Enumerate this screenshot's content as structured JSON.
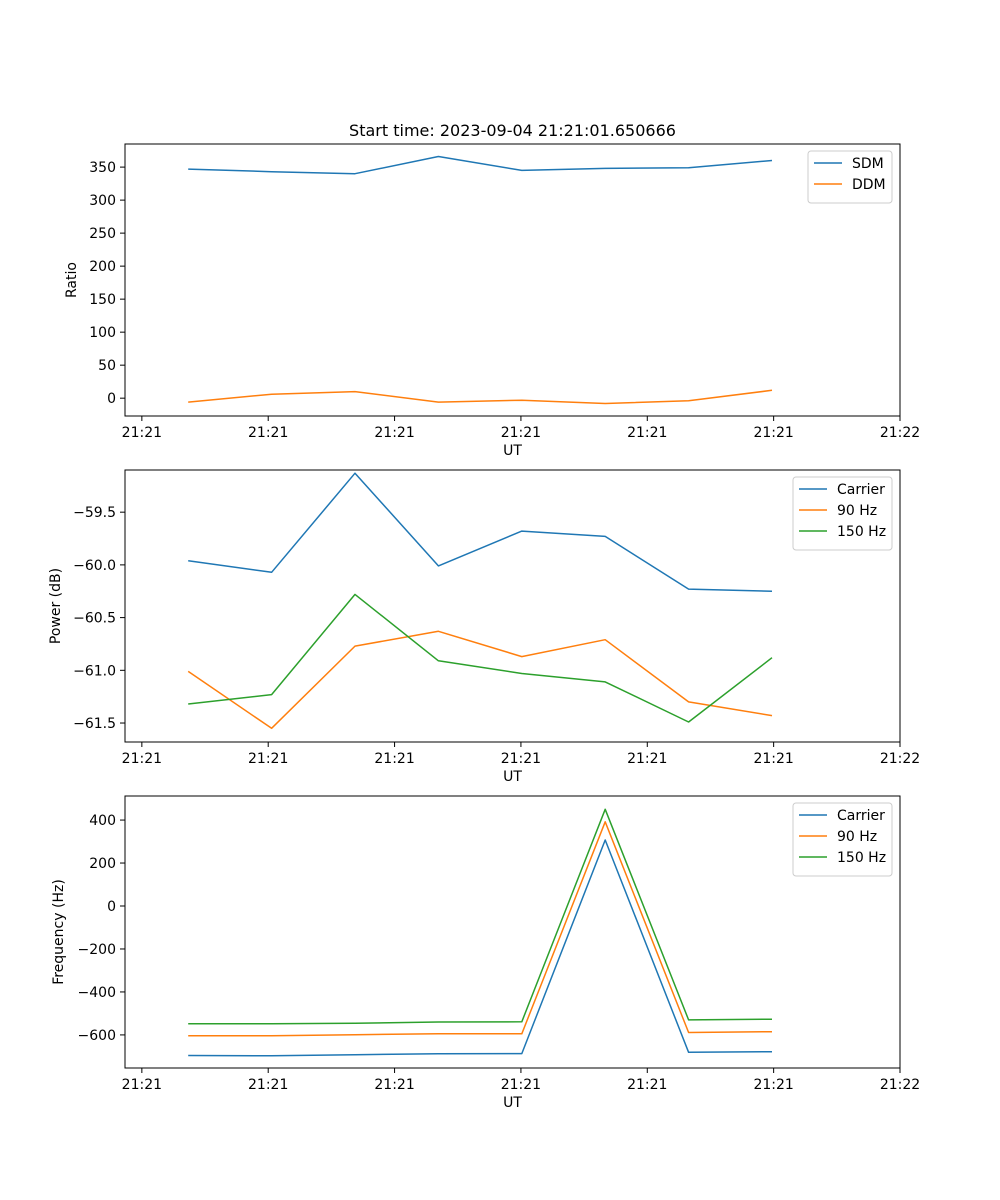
{
  "chart_data": [
    {
      "type": "line",
      "title": "Start time: 2023-09-04 21:21:01.650666",
      "xlabel": "UT",
      "ylabel": "Ratio",
      "xlim": [
        -0.2,
        9.0
      ],
      "ylim": [
        -27,
        385
      ],
      "xticks": [
        0,
        1.5,
        3,
        4.5,
        6,
        7.5,
        9
      ],
      "xtick_labels": [
        "21:21",
        "21:21",
        "21:21",
        "21:21",
        "21:21",
        "21:21",
        "21:22"
      ],
      "yticks": [
        0,
        50,
        100,
        150,
        200,
        250,
        300,
        350
      ],
      "ytick_labels": [
        "0",
        "50",
        "100",
        "150",
        "200",
        "250",
        "300",
        "350"
      ],
      "legend_position": "top-right",
      "x": [
        0.55,
        1.54,
        2.53,
        3.52,
        4.51,
        5.5,
        6.49,
        7.48
      ],
      "series": [
        {
          "name": "SDM",
          "color": "#1f77b4",
          "values": [
            347,
            343,
            340,
            366,
            345,
            348,
            349,
            360
          ]
        },
        {
          "name": "DDM",
          "color": "#ff7f0e",
          "values": [
            -6,
            6,
            10,
            -6,
            -3,
            -8,
            -4,
            12
          ]
        }
      ]
    },
    {
      "type": "line",
      "title": "",
      "xlabel": "UT",
      "ylabel": "Power (dB)",
      "xlim": [
        -0.2,
        9.0
      ],
      "ylim": [
        -61.68,
        -59.1
      ],
      "xticks": [
        0,
        1.5,
        3,
        4.5,
        6,
        7.5,
        9
      ],
      "xtick_labels": [
        "21:21",
        "21:21",
        "21:21",
        "21:21",
        "21:21",
        "21:21",
        "21:22"
      ],
      "yticks": [
        -61.5,
        -61.0,
        -60.5,
        -60.0,
        -59.5
      ],
      "ytick_labels": [
        "−61.5",
        "−61.0",
        "−60.5",
        "−60.0",
        "−59.5"
      ],
      "legend_position": "top-right",
      "x": [
        0.55,
        1.54,
        2.53,
        3.52,
        4.51,
        5.5,
        6.49,
        7.48
      ],
      "series": [
        {
          "name": "Carrier",
          "color": "#1f77b4",
          "values": [
            -59.96,
            -60.07,
            -59.13,
            -60.01,
            -59.68,
            -59.73,
            -60.23,
            -60.25
          ]
        },
        {
          "name": "90 Hz",
          "color": "#ff7f0e",
          "values": [
            -61.01,
            -61.55,
            -60.77,
            -60.63,
            -60.87,
            -60.71,
            -61.3,
            -61.43
          ]
        },
        {
          "name": "150 Hz",
          "color": "#2ca02c",
          "values": [
            -61.32,
            -61.23,
            -60.28,
            -60.91,
            -61.03,
            -61.11,
            -61.49,
            -60.88
          ]
        }
      ]
    },
    {
      "type": "line",
      "title": "",
      "xlabel": "UT",
      "ylabel": "Frequency (Hz)",
      "xlim": [
        -0.2,
        9.0
      ],
      "ylim": [
        -754,
        512
      ],
      "xticks": [
        0,
        1.5,
        3,
        4.5,
        6,
        7.5,
        9
      ],
      "xtick_labels": [
        "21:21",
        "21:21",
        "21:21",
        "21:21",
        "21:21",
        "21:21",
        "21:22"
      ],
      "yticks": [
        -600,
        -400,
        -200,
        0,
        200,
        400
      ],
      "ytick_labels": [
        "−600",
        "−400",
        "−200",
        "0",
        "200",
        "400"
      ],
      "legend_position": "top-right",
      "x": [
        0.55,
        1.54,
        2.53,
        3.52,
        4.51,
        5.5,
        6.49,
        7.48
      ],
      "series": [
        {
          "name": "Carrier",
          "color": "#1f77b4",
          "values": [
            -696,
            -697,
            -692,
            -688,
            -687,
            307,
            -681,
            -678
          ]
        },
        {
          "name": "90 Hz",
          "color": "#ff7f0e",
          "values": [
            -604,
            -604,
            -599,
            -595,
            -595,
            392,
            -589,
            -585
          ]
        },
        {
          "name": "150 Hz",
          "color": "#2ca02c",
          "values": [
            -548,
            -548,
            -546,
            -540,
            -539,
            450,
            -530,
            -527
          ]
        }
      ]
    }
  ]
}
